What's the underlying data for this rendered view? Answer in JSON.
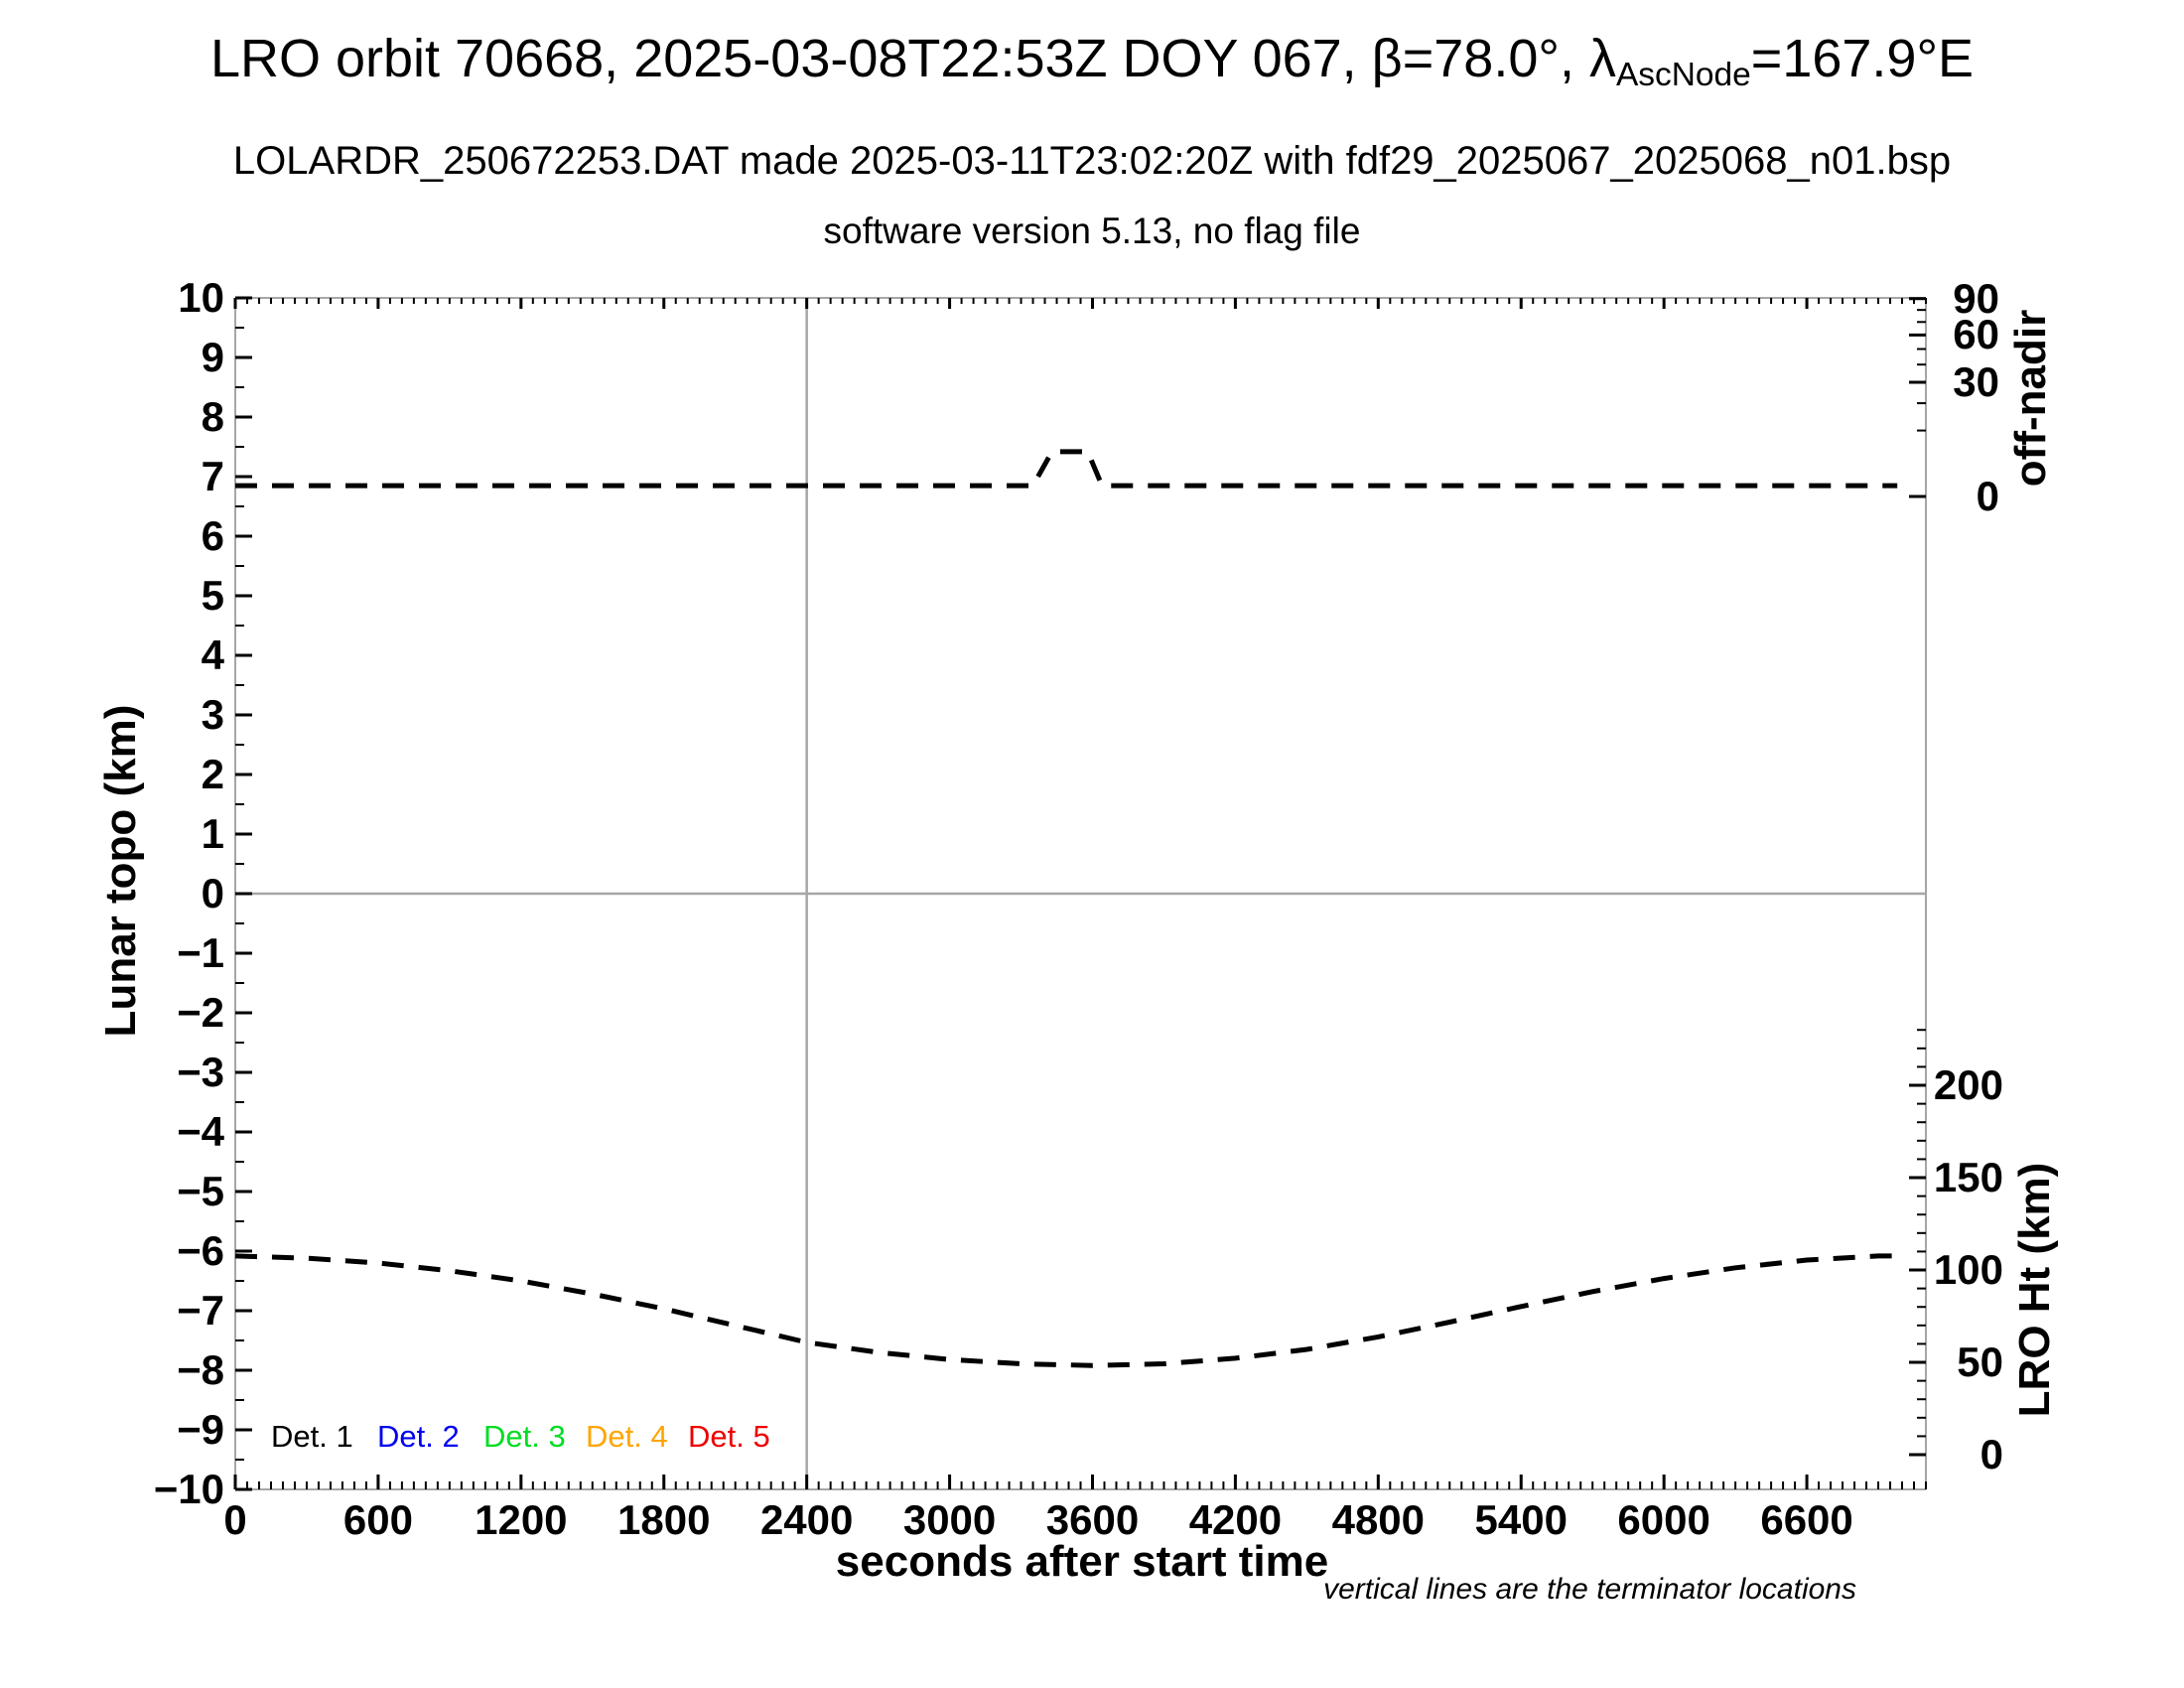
{
  "title": {
    "pre": "LRO orbit 70668, 2025-03-08T22:53Z DOY 067, β=78.0°, λ",
    "sub": "AscNode",
    "post": "=167.9°E"
  },
  "subtitle": "LOLARDR_250672253.DAT made 2025-03-11T23:02:20Z with fdf29_2025067_2025068_n01.bsp",
  "subtitle2": "software version 5.13, no flag file",
  "footnote": "vertical lines are the terminator locations",
  "legend": {
    "items": [
      {
        "label": "Det. 1",
        "color": "#000000"
      },
      {
        "label": "Det. 2",
        "color": "#0000ee"
      },
      {
        "label": "Det. 3",
        "color": "#00dd22"
      },
      {
        "label": "Det. 4",
        "color": "#ffa500"
      },
      {
        "label": "Det. 5",
        "color": "#ee0000"
      }
    ]
  },
  "colors": {
    "curve": "#000000",
    "frame": "#a6a6a6",
    "guide_lines": "#a6a6a6",
    "ticks": "#000000"
  },
  "chart_data": {
    "type": "line",
    "title": "LRO orbit 70668, 2025-03-08T22:53Z DOY 067, β=78.0°, λAscNode=167.9°E",
    "xlabel": "seconds after start time",
    "ylabel_left": "Lunar topo (km)",
    "ylabel_right_top": "off-nadir",
    "ylabel_right_bottom": "LRO Ht (km)",
    "xlim": [
      0,
      7100
    ],
    "ylim_left": [
      -10,
      10
    ],
    "grid": false,
    "x_major_ticks": [
      0,
      600,
      1200,
      1800,
      2400,
      3000,
      3600,
      4200,
      4800,
      5400,
      6000,
      6600
    ],
    "x_minor_step_sec": 50,
    "left_major_ticks": [
      10,
      9,
      8,
      7,
      6,
      5,
      4,
      3,
      2,
      1,
      0,
      -1,
      -2,
      -3,
      -4,
      -5,
      -6,
      -7,
      -8,
      -9,
      -10
    ],
    "left_minor_step": 0.5,
    "off_nadir_axis": {
      "major_ticks_deg": [
        90,
        60,
        30,
        0
      ],
      "minor_ticks_deg": [
        80,
        70,
        50,
        40,
        20,
        10
      ],
      "mapping_topo_at_0deg": 6.667,
      "mapping_topo_per_sqrt_deg": 0.35,
      "note": "non-linear axis: topo_units = 6.667 + 0.35*sqrt(deg)"
    },
    "lro_ht_axis": {
      "major_ticks_km": [
        200,
        150,
        100,
        50,
        0
      ],
      "minor_step_km": 10,
      "minor_max_km": 230,
      "mapping_topo_at_0km": -9.417,
      "mapping_topo_per_km": 0.031,
      "note": "linear axis: topo_units = -9.417 + 0.031*km"
    },
    "terminator_lines_sec": [
      2400
    ],
    "horizontal_zero_line_topo": 0,
    "series": [
      {
        "name": "spacecraft off-nadir angle",
        "axis": "off-nadir",
        "unit": "deg",
        "style": "dashed",
        "color": "#000000",
        "x": [
          0,
          3350,
          3430,
          3580,
          3640,
          6980
        ],
        "y_deg": [
          0.27,
          0.27,
          4.6,
          4.6,
          0.27,
          0.27
        ]
      },
      {
        "name": "LRO height above surface",
        "axis": "LRO Ht (km)",
        "unit": "km",
        "style": "dashed",
        "color": "#000000",
        "x": [
          0,
          300,
          600,
          900,
          1200,
          1500,
          1800,
          2100,
          2400,
          2700,
          3000,
          3300,
          3600,
          3900,
          4200,
          4500,
          4800,
          5100,
          5400,
          5700,
          6000,
          6300,
          6600,
          6900,
          6980
        ],
        "y_km": [
          107.6,
          106.4,
          103.8,
          99.6,
          94.1,
          87.0,
          79.0,
          69.9,
          60.8,
          55.4,
          51.5,
          49.2,
          48.3,
          49.2,
          52.2,
          57.0,
          63.8,
          71.8,
          80.2,
          88.3,
          95.4,
          101.2,
          105.4,
          107.6,
          107.6
        ]
      }
    ],
    "legend_entries": [
      "Det. 1",
      "Det. 2",
      "Det. 3",
      "Det. 4",
      "Det. 5"
    ],
    "legend_position": "inside bottom-left"
  }
}
